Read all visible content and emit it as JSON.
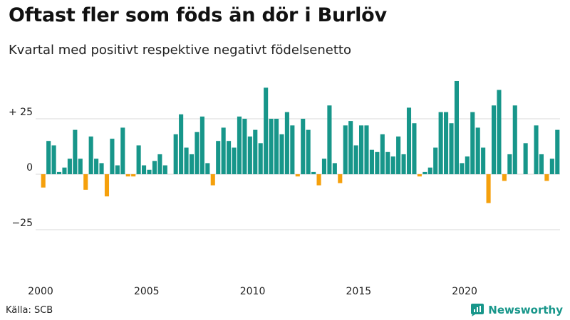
{
  "title": "Oftast fler som föds än dör i Burlöv",
  "subtitle": "Kvartal med positivt respektive negativt födelsenetto",
  "source": "Källa: SCB",
  "brand": "Newsworthy",
  "colors": {
    "positive": "#17968a",
    "negative": "#f5a00c",
    "grid": "#d9d9d9",
    "brand": "#17968a"
  },
  "chart_data": {
    "type": "bar",
    "title": "Oftast fler som föds än dör i Burlöv",
    "subtitle": "Kvartal med positivt respektive negativt födelsenetto",
    "xlabel": "",
    "ylabel": "",
    "ylim": [
      -45,
      45
    ],
    "grid": true,
    "yticks": [
      {
        "value": 25,
        "label": "+ 25"
      },
      {
        "value": 0,
        "label": "0"
      },
      {
        "value": -25,
        "label": "−25"
      }
    ],
    "xticks": [
      "2000",
      "2005",
      "2010",
      "2015",
      "2020"
    ],
    "start_year": 2000,
    "periods_per_year": 4,
    "values": [
      -6,
      15,
      13,
      1,
      3,
      7,
      20,
      7,
      -7,
      17,
      7,
      5,
      -10,
      16,
      4,
      21,
      -1,
      -1,
      13,
      4,
      2,
      6,
      9,
      4,
      0,
      18,
      27,
      12,
      9,
      19,
      26,
      5,
      -5,
      15,
      21,
      15,
      12,
      26,
      25,
      17,
      20,
      14,
      39,
      25,
      25,
      18,
      28,
      22,
      -1,
      25,
      20,
      1,
      -5,
      7,
      31,
      5,
      -4,
      22,
      24,
      13,
      22,
      22,
      11,
      10,
      18,
      10,
      8,
      17,
      9,
      30,
      23,
      -1,
      1,
      3,
      12,
      28,
      28,
      23,
      42,
      5,
      8,
      28,
      21,
      12,
      -13,
      31,
      38,
      -3,
      9,
      31,
      0,
      14,
      0,
      22,
      9,
      -3,
      7,
      20
    ]
  }
}
